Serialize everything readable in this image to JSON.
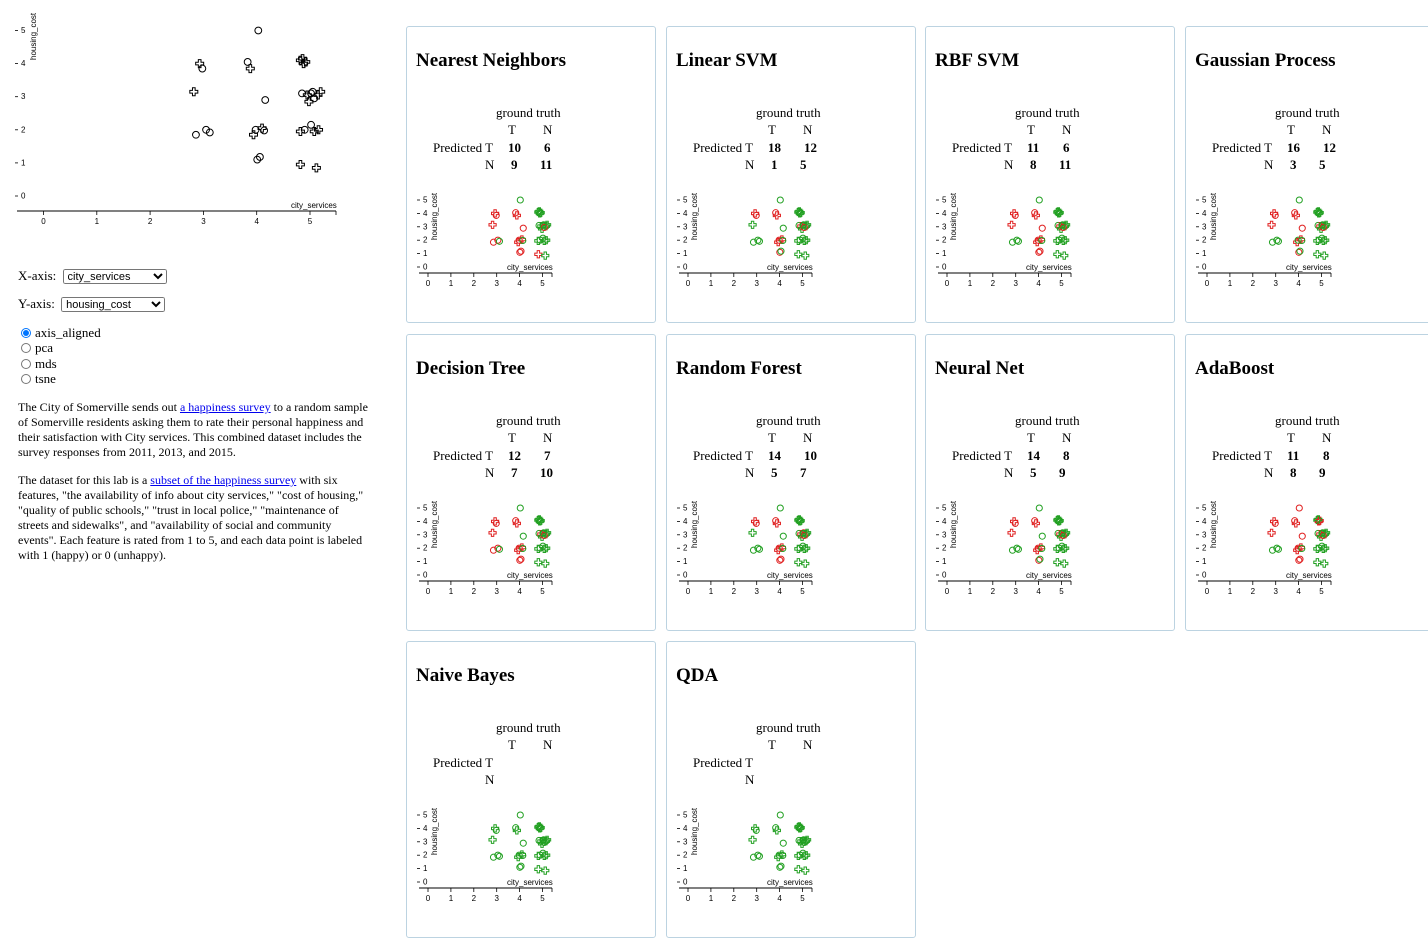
{
  "controls": {
    "x_label": "X-axis:",
    "x_selected": "city_services",
    "y_label": "Y-axis:",
    "y_selected": "housing_cost",
    "projections": [
      "axis_aligned",
      "pca",
      "mds",
      "tsne"
    ],
    "projection_selected": "axis_aligned"
  },
  "description": {
    "p1_before": "The City of Somerville sends out ",
    "p1_link": "a happiness survey",
    "p1_after": " to a random sample of Somerville residents asking them to rate their personal happiness and their satisfaction with City services. This combined dataset includes the survey responses from 2011, 2013, and 2015.",
    "p2_before": "The dataset for this lab is a ",
    "p2_link": "subset of the happiness survey",
    "p2_after": " with six features, \"the availability of info about city services,\" \"cost of housing,\" \"quality of public schools,\" \"trust in local police,\" \"maintenance of streets and sidewalks\", and \"availability of social and community events\". Each feature is rated from 1 to 5, and each data point is labeled with 1 (happy) or 0 (unhappy)."
  },
  "colors": {
    "correct": "#22a022",
    "wrong": "#e02020",
    "card_border": "#bcd3e1",
    "link": "#0000ee"
  },
  "chart_data": {
    "type": "scatter",
    "xlabel": "city_services",
    "ylabel": "housing_cost",
    "xlim": [
      0,
      5
    ],
    "ylim": [
      0,
      5
    ],
    "x_ticks": [
      "0",
      "1",
      "2",
      "3",
      "4",
      "5"
    ],
    "y_ticks": [
      "0",
      "1",
      "2",
      "3",
      "4",
      "5"
    ],
    "legend": "shape: plus = 1 (happy), circle = 0 (unhappy)",
    "points": [
      {
        "x": 4.03,
        "y": 5.0,
        "label": 0
      },
      {
        "x": 2.93,
        "y": 4.0,
        "label": 1
      },
      {
        "x": 2.98,
        "y": 3.85,
        "label": 0
      },
      {
        "x": 3.83,
        "y": 4.05,
        "label": 0
      },
      {
        "x": 3.88,
        "y": 3.85,
        "label": 1
      },
      {
        "x": 4.82,
        "y": 4.1,
        "label": 1
      },
      {
        "x": 4.88,
        "y": 4.0,
        "label": 1
      },
      {
        "x": 4.92,
        "y": 4.05,
        "label": 1
      },
      {
        "x": 4.86,
        "y": 4.15,
        "label": 1
      },
      {
        "x": 2.82,
        "y": 3.15,
        "label": 1
      },
      {
        "x": 4.16,
        "y": 2.9,
        "label": 0
      },
      {
        "x": 4.85,
        "y": 3.1,
        "label": 0
      },
      {
        "x": 4.95,
        "y": 3.05,
        "label": 1
      },
      {
        "x": 5.05,
        "y": 3.15,
        "label": 0
      },
      {
        "x": 5.15,
        "y": 3.05,
        "label": 1
      },
      {
        "x": 5.2,
        "y": 3.15,
        "label": 1
      },
      {
        "x": 4.98,
        "y": 2.85,
        "label": 1
      },
      {
        "x": 5.08,
        "y": 2.95,
        "label": 0
      },
      {
        "x": 5.02,
        "y": 3.1,
        "label": 0
      },
      {
        "x": 2.86,
        "y": 1.85,
        "label": 0
      },
      {
        "x": 3.05,
        "y": 2.0,
        "label": 0
      },
      {
        "x": 3.12,
        "y": 1.92,
        "label": 0
      },
      {
        "x": 3.94,
        "y": 1.85,
        "label": 1
      },
      {
        "x": 3.98,
        "y": 2.0,
        "label": 0
      },
      {
        "x": 4.1,
        "y": 2.05,
        "label": 1
      },
      {
        "x": 4.14,
        "y": 1.98,
        "label": 0
      },
      {
        "x": 4.82,
        "y": 1.95,
        "label": 1
      },
      {
        "x": 4.9,
        "y": 2.0,
        "label": 0
      },
      {
        "x": 5.02,
        "y": 2.15,
        "label": 0
      },
      {
        "x": 5.08,
        "y": 1.95,
        "label": 1
      },
      {
        "x": 5.16,
        "y": 2.0,
        "label": 1
      },
      {
        "x": 4.01,
        "y": 1.1,
        "label": 0
      },
      {
        "x": 4.06,
        "y": 1.18,
        "label": 0
      },
      {
        "x": 4.82,
        "y": 0.95,
        "label": 1
      },
      {
        "x": 5.12,
        "y": 0.85,
        "label": 1
      }
    ],
    "classifiers": [
      {
        "name": "Nearest Neighbors",
        "TT": "10",
        "TN": "6",
        "NT": "9",
        "NN": "11",
        "wrong": [
          1,
          2,
          3,
          4,
          9,
          10,
          19,
          20,
          22,
          23,
          24,
          31,
          32,
          33,
          17
        ]
      },
      {
        "name": "Linear SVM",
        "TT": "18",
        "TN": "12",
        "NT": "1",
        "NN": "5",
        "wrong": [
          1,
          2,
          3,
          4,
          22,
          23,
          24,
          31,
          17,
          12
        ]
      },
      {
        "name": "RBF SVM",
        "TT": "11",
        "TN": "6",
        "NT": "8",
        "NN": "11",
        "wrong": [
          1,
          2,
          3,
          4,
          9,
          10,
          22,
          23,
          24,
          31,
          32,
          17,
          12
        ]
      },
      {
        "name": "Gaussian Process",
        "TT": "16",
        "TN": "12",
        "NT": "3",
        "NN": "5",
        "wrong": [
          1,
          2,
          3,
          4,
          9,
          10,
          22,
          24,
          31,
          17,
          12
        ]
      },
      {
        "name": "Decision Tree",
        "TT": "12",
        "TN": "7",
        "NT": "7",
        "NN": "10",
        "wrong": [
          1,
          2,
          3,
          4,
          9,
          19,
          20,
          22,
          23,
          24,
          31,
          32,
          12,
          17
        ]
      },
      {
        "name": "Random Forest",
        "TT": "14",
        "TN": "10",
        "NT": "5",
        "NN": "7",
        "wrong": [
          1,
          2,
          3,
          4,
          22,
          23,
          24,
          31,
          32,
          17,
          12,
          13
        ]
      },
      {
        "name": "Neural Net",
        "TT": "14",
        "TN": "8",
        "NT": "5",
        "NN": "9",
        "wrong": [
          1,
          2,
          3,
          4,
          9,
          22,
          23,
          24,
          31,
          17,
          12
        ]
      },
      {
        "name": "AdaBoost",
        "TT": "11",
        "TN": "8",
        "NT": "8",
        "NN": "9",
        "wrong": [
          0,
          1,
          2,
          3,
          4,
          6,
          7,
          9,
          10,
          22,
          23,
          24,
          31,
          32,
          17,
          12
        ]
      },
      {
        "name": "Naive Bayes",
        "TT": "",
        "TN": "",
        "NT": "",
        "NN": "",
        "wrong": []
      },
      {
        "name": "QDA",
        "TT": "",
        "TN": "",
        "NT": "",
        "NN": "",
        "wrong": []
      }
    ]
  },
  "matrix_labels": {
    "title": "ground truth",
    "T": "T",
    "N": "N",
    "predicted": "Predicted"
  }
}
